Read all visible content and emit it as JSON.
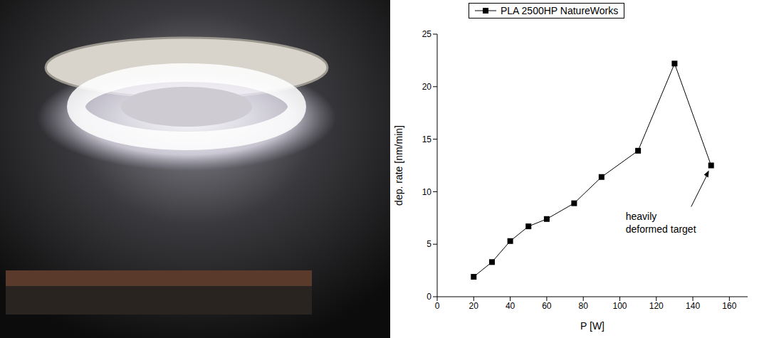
{
  "chart_data": {
    "type": "line",
    "x_label": "P [W]",
    "y_label": "dep. rate [nm/min]",
    "x": [
      20,
      30,
      40,
      50,
      60,
      75,
      90,
      110,
      130,
      150
    ],
    "series": [
      {
        "name": "PLA 2500HP NatureWorks",
        "color": "#000000",
        "marker": "square",
        "line_style": "solid",
        "values": [
          1.9,
          3.3,
          5.3,
          6.7,
          7.4,
          8.9,
          11.4,
          13.9,
          22.2,
          12.5
        ]
      }
    ],
    "xlim": [
      0,
      170
    ],
    "xticks": [
      0,
      20,
      40,
      60,
      80,
      100,
      120,
      140,
      160
    ],
    "ylim": [
      0,
      25
    ],
    "yticks": [
      0,
      5,
      10,
      15,
      20,
      25
    ],
    "grid": false,
    "legend": "top",
    "annotations": [
      {
        "text": "heavily deformed target",
        "x": 150,
        "y": 12.5
      }
    ]
  }
}
